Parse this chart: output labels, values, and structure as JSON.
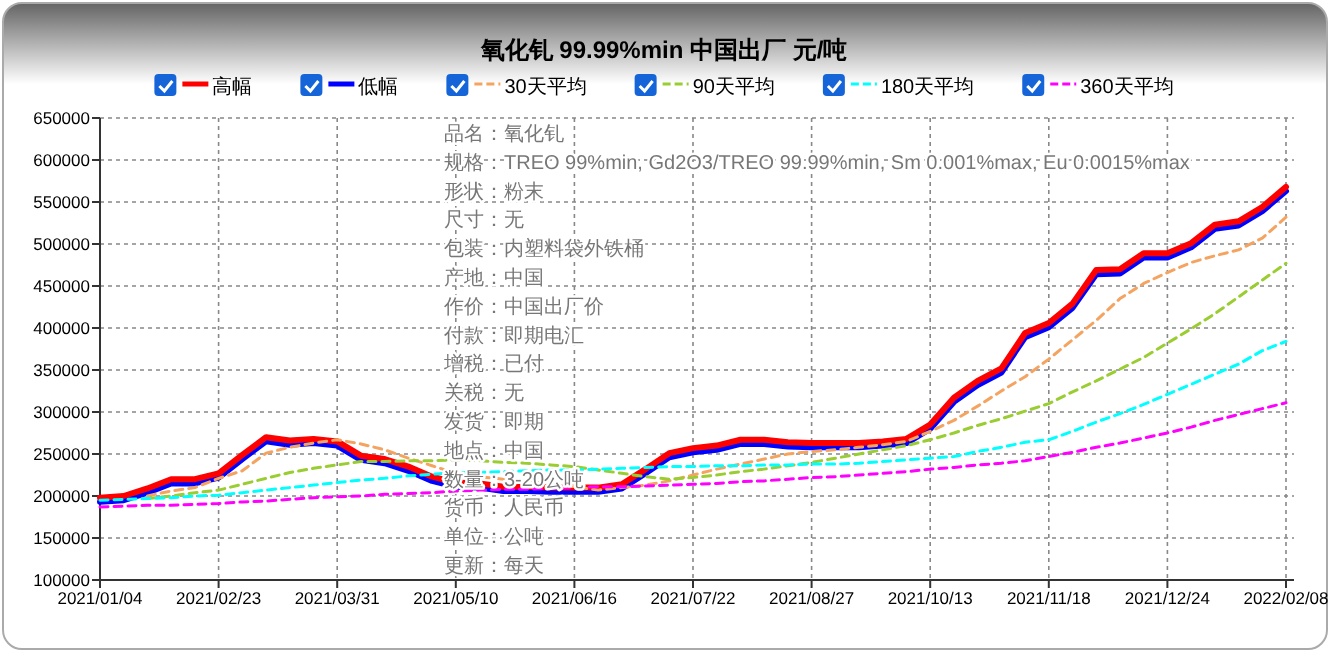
{
  "chart_data": {
    "type": "line",
    "title": "氧化钆 99.99%min 中国出厂 元/吨",
    "legend": "top",
    "grid": true,
    "categories": [
      "2021/01/04",
      null,
      null,
      null,
      null,
      "2021/02/23",
      null,
      null,
      null,
      null,
      "2021/03/31",
      null,
      null,
      null,
      null,
      "2021/05/10",
      null,
      null,
      null,
      null,
      "2021/06/16",
      null,
      null,
      null,
      null,
      "2021/07/22",
      null,
      null,
      null,
      null,
      "2021/08/27",
      null,
      null,
      null,
      null,
      "2021/10/13",
      null,
      null,
      null,
      null,
      "2021/11/18",
      null,
      null,
      null,
      null,
      "2021/12/24",
      null,
      null,
      null,
      null,
      "2022/02/08"
    ],
    "ylim": [
      100000,
      650000
    ],
    "yticks": [
      100000,
      150000,
      200000,
      250000,
      300000,
      350000,
      400000,
      450000,
      500000,
      550000,
      600000,
      650000
    ],
    "series": [
      {
        "name": "低幅",
        "color": "#0000ff",
        "line_style": "solid",
        "values": [
          193000,
          195000,
          204000,
          215000,
          215000,
          222000,
          244000,
          265000,
          261000,
          263000,
          260000,
          243000,
          239000,
          230000,
          218000,
          211000,
          210000,
          206000,
          206000,
          205000,
          205000,
          205000,
          209000,
          227000,
          246000,
          252000,
          255000,
          262000,
          262000,
          259000,
          258000,
          258000,
          258000,
          260000,
          263000,
          280000,
          312000,
          332000,
          347000,
          389000,
          401000,
          424000,
          464000,
          465000,
          484000,
          484000,
          496000,
          518000,
          522000,
          539000,
          563000
        ]
      },
      {
        "name": "高幅",
        "color": "#ff0000",
        "line_style": "solid",
        "values": [
          198000,
          200000,
          209000,
          220000,
          220000,
          227000,
          249000,
          270000,
          266000,
          268000,
          265000,
          248000,
          244000,
          235000,
          223000,
          216000,
          215000,
          211000,
          211000,
          210000,
          210000,
          210000,
          214000,
          232000,
          251000,
          257000,
          260000,
          267000,
          267000,
          264000,
          263000,
          263000,
          263000,
          265000,
          268000,
          285000,
          317000,
          337000,
          352000,
          394000,
          406000,
          429000,
          469000,
          470000,
          489000,
          489000,
          501000,
          523000,
          527000,
          544000,
          568000
        ]
      },
      {
        "name": "30天平均",
        "color": "#f4a460",
        "line_style": "dashed",
        "values": [
          null,
          null,
          200000,
          206000,
          210000,
          221000,
          230000,
          251000,
          258000,
          263000,
          267000,
          262000,
          255000,
          245000,
          236000,
          227000,
          223000,
          220000,
          217000,
          215000,
          211000,
          207000,
          210000,
          213000,
          218000,
          225000,
          232000,
          238000,
          244000,
          250000,
          253000,
          255000,
          258000,
          261000,
          265000,
          277000,
          290000,
          307000,
          325000,
          342000,
          363000,
          386000,
          409000,
          435000,
          453000,
          466000,
          478000,
          486000,
          493000,
          507000,
          532000
        ]
      },
      {
        "name": "90天平均",
        "color": "#9acd32",
        "line_style": "dashed",
        "values": [
          null,
          null,
          197000,
          200000,
          204000,
          207000,
          214000,
          221000,
          228000,
          233000,
          237000,
          241000,
          241000,
          242000,
          242000,
          243000,
          242000,
          240000,
          239000,
          237000,
          235000,
          231000,
          227000,
          223000,
          220000,
          222000,
          225000,
          229000,
          232000,
          236000,
          240000,
          245000,
          250000,
          255000,
          260000,
          267000,
          275000,
          284000,
          292000,
          301000,
          310000,
          324000,
          337000,
          351000,
          365000,
          382000,
          399000,
          417000,
          437000,
          457000,
          477000
        ]
      },
      {
        "name": "180天平均",
        "color": "#00ffff",
        "line_style": "dashed",
        "values": [
          195000,
          196000,
          197000,
          198000,
          200000,
          201000,
          204000,
          207000,
          210000,
          213000,
          216000,
          219000,
          221000,
          224000,
          226000,
          228000,
          228000,
          229000,
          230000,
          231000,
          231000,
          232000,
          233000,
          234000,
          235000,
          235000,
          236000,
          236000,
          237000,
          237000,
          238000,
          238000,
          239000,
          241000,
          243000,
          245000,
          247000,
          253000,
          258000,
          264000,
          267000,
          277000,
          288000,
          298000,
          309000,
          321000,
          333000,
          345000,
          357000,
          373000,
          384000
        ]
      },
      {
        "name": "360天平均",
        "color": "#ff00ff",
        "line_style": "dashed",
        "values": [
          187000,
          188000,
          189000,
          189000,
          190000,
          191000,
          193000,
          194000,
          196000,
          198000,
          199000,
          200000,
          202000,
          203000,
          204000,
          206000,
          207000,
          208000,
          208000,
          209000,
          210000,
          211000,
          211000,
          212000,
          213000,
          214000,
          215000,
          217000,
          218000,
          220000,
          222000,
          223000,
          225000,
          227000,
          229000,
          232000,
          234000,
          237000,
          239000,
          242000,
          247000,
          252000,
          258000,
          263000,
          269000,
          275000,
          282000,
          290000,
          297000,
          304000,
          311000
        ]
      }
    ],
    "annotations": [
      "品名：氧化钆",
      "规格：TREO 99%min, Gd2O3/TREO 99.99%min, Sm 0.001%max, Eu 0.0015%max",
      "形状：粉末",
      "尺寸：无",
      "包装：内塑料袋外铁桶",
      "产地：中国",
      "作价：中国出厂价",
      "付款：即期电汇",
      "增税：已付",
      "关税：无",
      "发货：即期",
      "地点：中国",
      "数量：3-20公吨",
      "货币：人民币",
      "单位：公吨",
      "更新：每天"
    ]
  }
}
